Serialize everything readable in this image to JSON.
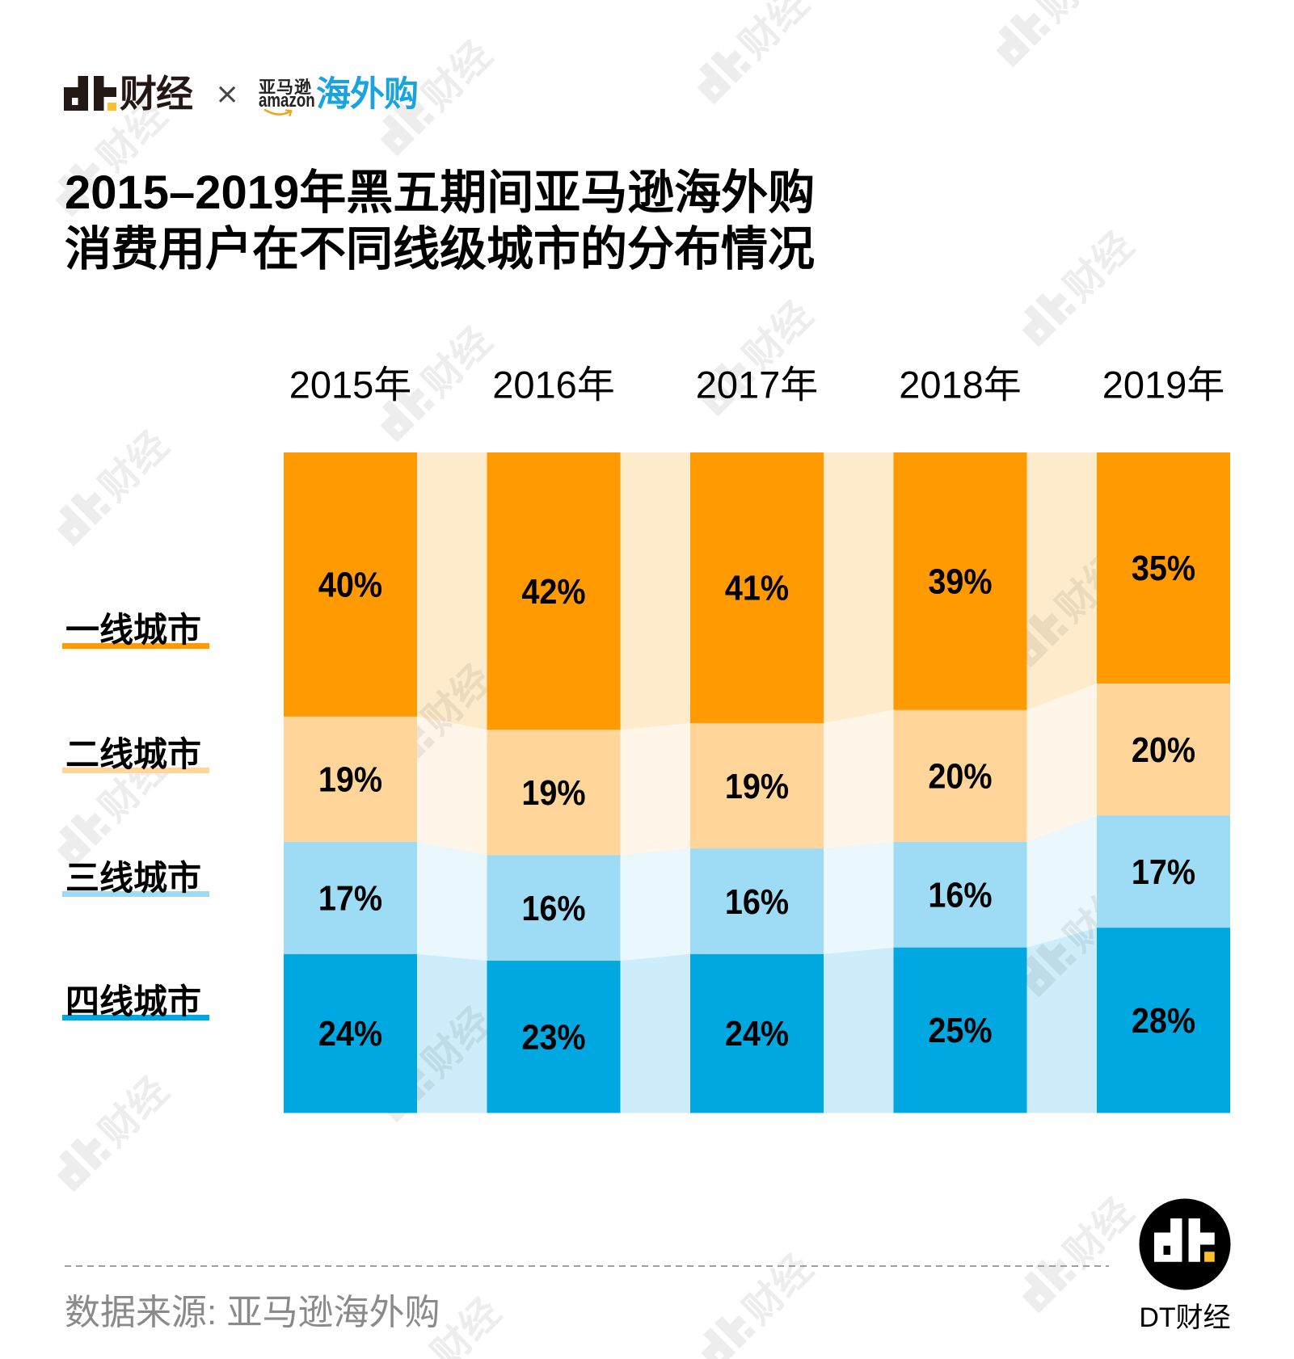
{
  "header": {
    "brand_logo_icon": "dt-logo-icon",
    "brand_logo_text": "财经",
    "separator": "×",
    "partner": {
      "cn_name": "亚马逊",
      "en_name": "amazon",
      "smile_icon": "amazon-smile-icon",
      "service": "海外购"
    }
  },
  "title": {
    "line1": "2015–2019年黑五期间亚马逊海外购",
    "line2": "消费用户在不同线级城市的分布情况"
  },
  "chart_data": {
    "type": "bar",
    "stacked": true,
    "normalized_to_100": true,
    "title": "2015–2019年黑五期间亚马逊海外购消费用户在不同线级城市的分布情况",
    "xlabel": "",
    "ylabel": "",
    "ylim": [
      0,
      100
    ],
    "grid": false,
    "legend_position": "left",
    "value_suffix": "%",
    "categories": [
      "2015年",
      "2016年",
      "2017年",
      "2018年",
      "2019年"
    ],
    "series": [
      {
        "name": "一线城市",
        "values": [
          40,
          42,
          41,
          39,
          35
        ],
        "color": "#FF9A00",
        "band_color": "#FEEBCC"
      },
      {
        "name": "二线城市",
        "values": [
          19,
          19,
          19,
          20,
          20
        ],
        "color": "#FFD599",
        "band_color": "#FFF5E8"
      },
      {
        "name": "三线城市",
        "values": [
          17,
          16,
          16,
          16,
          17
        ],
        "color": "#9DDCF4",
        "band_color": "#EAF7FD"
      },
      {
        "name": "四线城市",
        "values": [
          24,
          23,
          24,
          25,
          28
        ],
        "color": "#00A8E1",
        "band_color": "#CCEDF9"
      }
    ]
  },
  "footer": {
    "source": "数据来源: 亚马逊海外购",
    "brand_badge_icon": "dt-logo-icon",
    "brand_badge_text": "DT财经"
  },
  "watermark": {
    "text": "财经"
  },
  "colors": {
    "brand_dark": "#231815",
    "brand_yellow": "#FBC02D",
    "partner_blue": "#1AA4DF",
    "amazon_orange": "#F7A21B",
    "source_text": "#8A8A8A"
  }
}
